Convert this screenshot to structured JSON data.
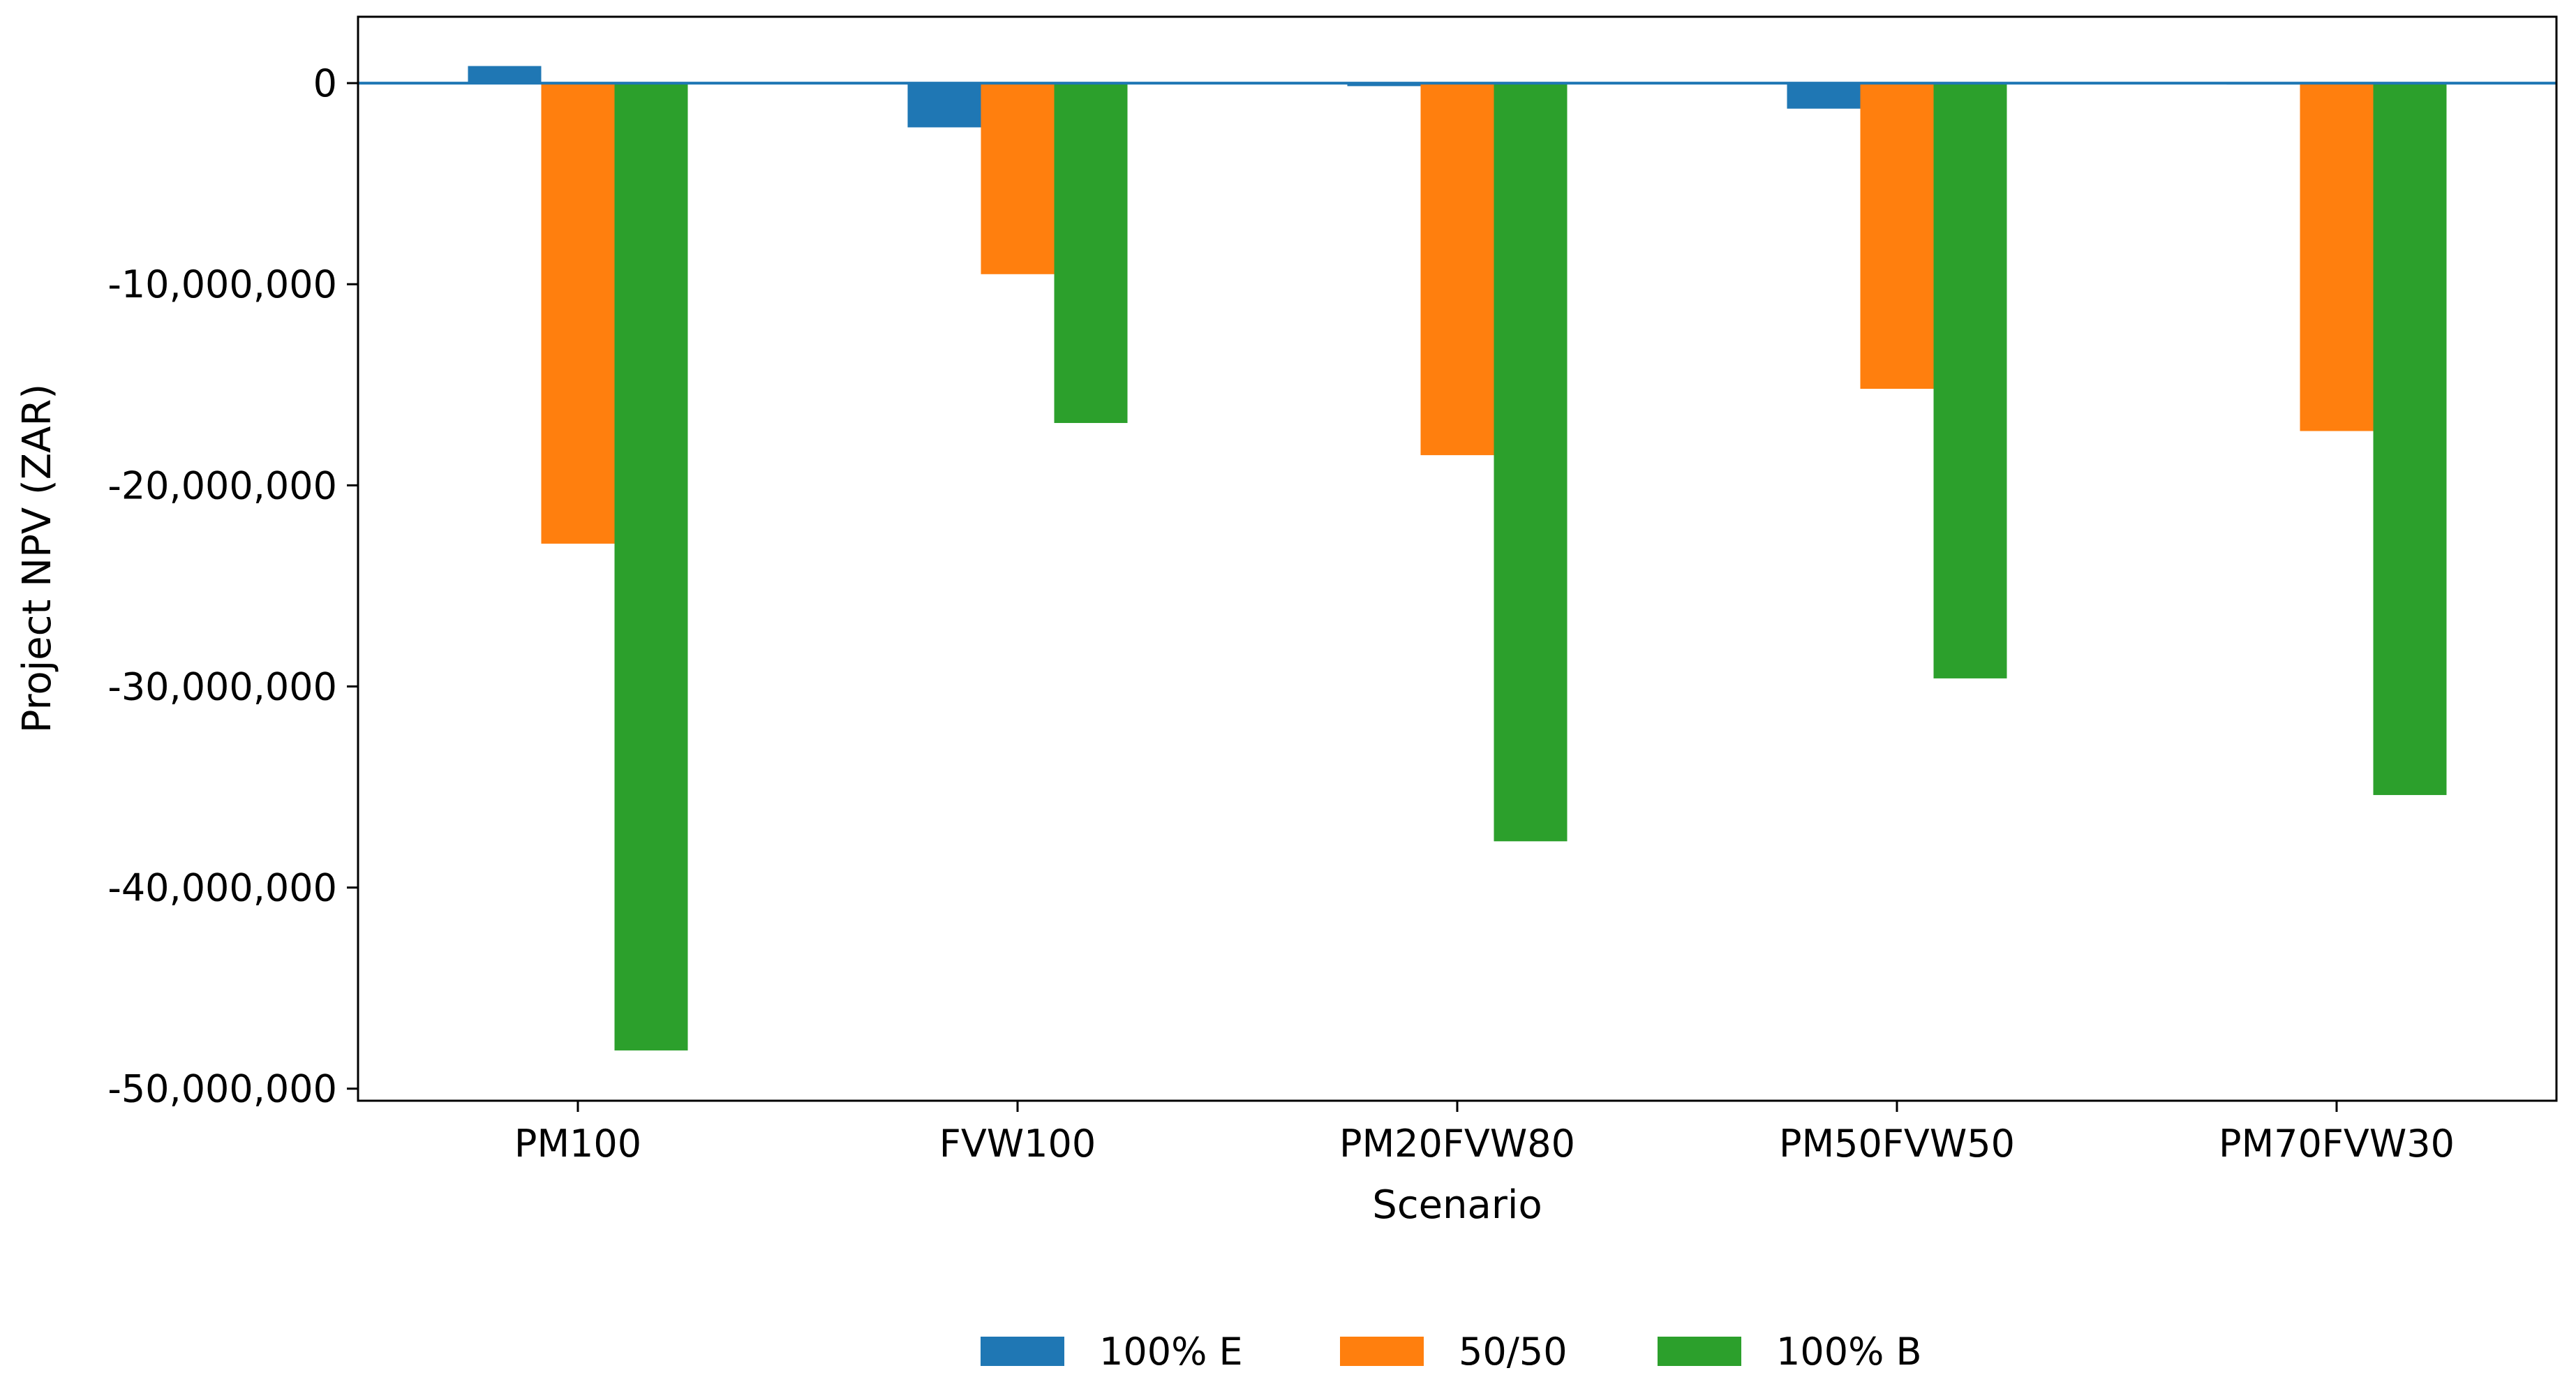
{
  "chart_data": {
    "type": "bar",
    "title": "",
    "xlabel": "Scenario",
    "ylabel": "Project NPV (ZAR)",
    "categories": [
      "PM100",
      "FVW100",
      "PM20FVW80",
      "PM50FVW50",
      "PM70FVW30"
    ],
    "series": [
      {
        "name": "100% E",
        "color": "#1f77b4",
        "values": [
          850000,
          -2200000,
          -150000,
          -1270000,
          -70000
        ]
      },
      {
        "name": "50/50",
        "color": "#ff7f0e",
        "values": [
          -22900000,
          -9500000,
          -18500000,
          -15200000,
          -17300000
        ]
      },
      {
        "name": "100% B",
        "color": "#2ca02c",
        "values": [
          -48100000,
          -16900000,
          -37700000,
          -29600000,
          -35400000
        ]
      }
    ],
    "ylim": [
      -50600000,
      3300000
    ],
    "yticks": [
      0,
      -10000000,
      -20000000,
      -30000000,
      -40000000,
      -50000000
    ],
    "ytick_labels": [
      "0",
      "-10,000,000",
      "-20,000,000",
      "-30,000,000",
      "-40,000,000",
      "-50,000,000"
    ],
    "zero_line": {
      "value": 0,
      "color": "#1f77b4"
    },
    "grid": false,
    "legend_position": "bottom-center"
  }
}
